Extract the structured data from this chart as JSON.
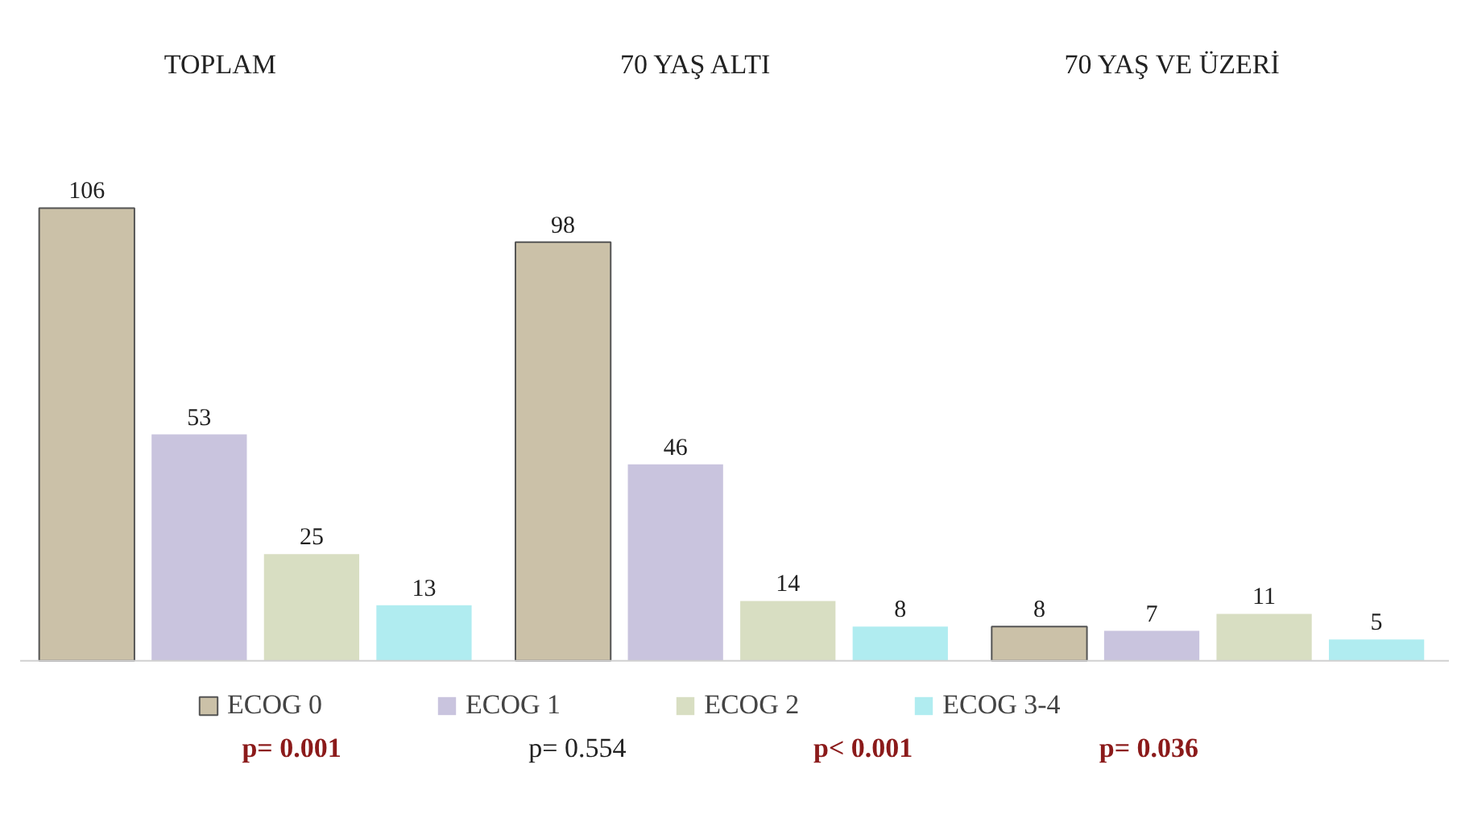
{
  "chart_data": {
    "type": "bar",
    "categories": [
      "TOPLAM",
      "70 YAŞ ALTI",
      "70 YAŞ VE ÜZERİ"
    ],
    "series": [
      {
        "name": "ECOG 0",
        "color": "#cbc1a8",
        "values": [
          106,
          98,
          8
        ]
      },
      {
        "name": "ECOG 1",
        "color": "#c9c4de",
        "values": [
          53,
          46,
          7
        ]
      },
      {
        "name": "ECOG 2",
        "color": "#d8dec2",
        "values": [
          25,
          14,
          11
        ]
      },
      {
        "name": "ECOG 3-4",
        "color": "#b0ecf0",
        "values": [
          13,
          8,
          5
        ]
      }
    ],
    "data_labels": true,
    "legend": "bottom",
    "grid": false,
    "annotations": [
      "p= 0.001",
      "p= 0.554",
      "p< 0.001",
      "p= 0.036"
    ]
  }
}
